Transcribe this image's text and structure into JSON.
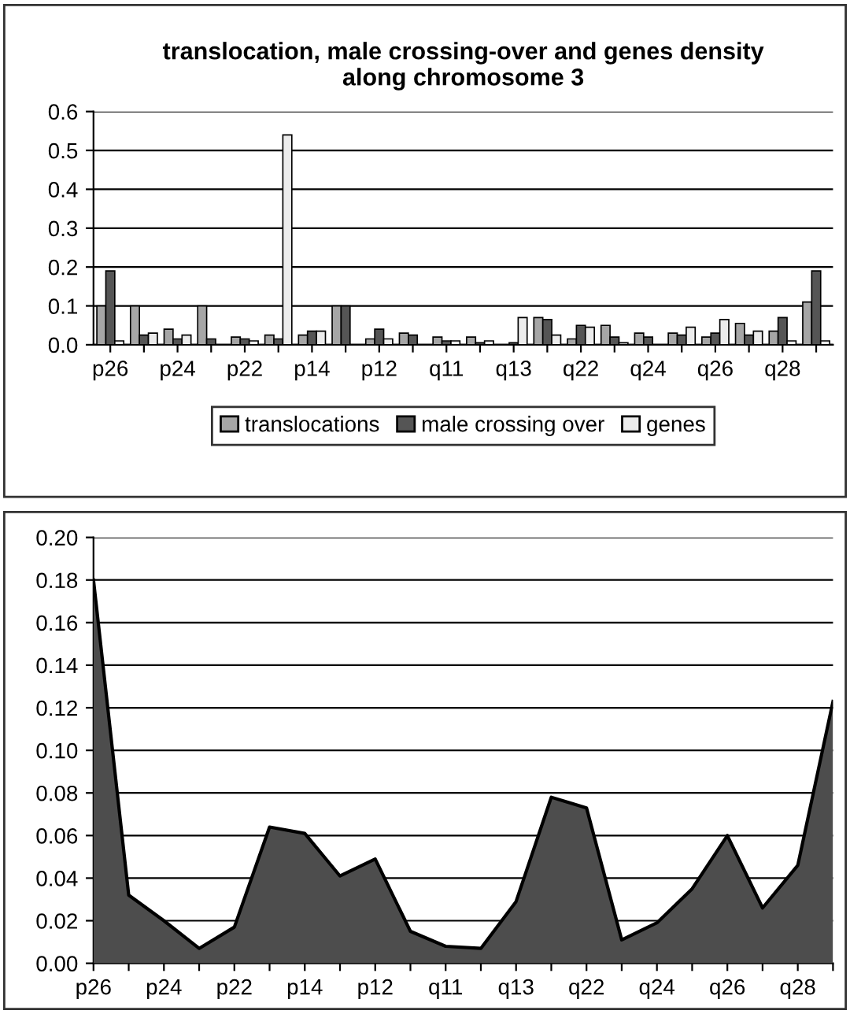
{
  "chart_data": [
    {
      "type": "bar",
      "title": "translocation, male crossing-over and genes density\nalong chromosome 3",
      "categories": [
        "p26",
        null,
        "p24",
        null,
        "p22",
        null,
        "p14",
        null,
        "p12",
        null,
        "q11",
        null,
        "q13",
        null,
        "q22",
        null,
        "q24",
        null,
        "q26",
        null,
        "q28",
        null
      ],
      "series": [
        {
          "name": "translocations",
          "color": "#a6a6a6",
          "values": [
            0.1,
            0.1,
            0.04,
            0.1,
            0.02,
            0.025,
            0.025,
            0.1,
            0.015,
            0.03,
            0.02,
            0.02,
            null,
            0.07,
            0.015,
            0.05,
            0.03,
            0.03,
            0.02,
            0.055,
            0.035,
            0.11
          ]
        },
        {
          "name": "male crossing over",
          "color": "#555555",
          "values": [
            0.19,
            0.025,
            0.015,
            0.015,
            0.015,
            0.015,
            0.035,
            0.1,
            0.04,
            0.025,
            0.01,
            0.005,
            0.005,
            0.065,
            0.05,
            0.02,
            0.02,
            0.025,
            0.03,
            0.025,
            0.07,
            0.19
          ]
        },
        {
          "name": "genes",
          "color": "#ececec",
          "values": [
            0.01,
            0.03,
            0.025,
            null,
            0.01,
            0.54,
            0.035,
            null,
            0.015,
            null,
            0.01,
            0.01,
            0.07,
            0.025,
            0.045,
            0.005,
            null,
            0.045,
            0.065,
            0.035,
            0.01,
            0.01
          ]
        }
      ],
      "ylim": [
        0,
        0.6
      ],
      "yticks": [
        {
          "value": 0,
          "label": "0.0"
        },
        {
          "value": 0.1,
          "label": "0.1"
        },
        {
          "value": 0.2,
          "label": "0.2"
        },
        {
          "value": 0.3,
          "label": "0.3"
        },
        {
          "value": 0.4,
          "label": "0.4"
        },
        {
          "value": 0.5,
          "label": "0.5"
        },
        {
          "value": 0.6,
          "label": "0.6"
        }
      ],
      "grid": "y",
      "legend": "bottom"
    },
    {
      "type": "area",
      "categories": [
        "p26",
        null,
        "p24",
        null,
        "p22",
        null,
        "p14",
        null,
        "p12",
        null,
        "q11",
        null,
        "q13",
        null,
        "q22",
        null,
        "q24",
        null,
        "q26",
        null,
        "q28",
        null
      ],
      "series": [
        {
          "color": "#4d4d4d",
          "values": [
            0.18,
            0.032,
            0.02,
            0.007,
            0.017,
            0.064,
            0.061,
            0.041,
            0.049,
            0.015,
            0.008,
            0.007,
            0.029,
            0.078,
            0.073,
            0.011,
            0.019,
            0.035,
            0.06,
            0.026,
            0.046,
            0.123
          ]
        }
      ],
      "ylim": [
        0,
        0.2
      ],
      "yticks": [
        {
          "value": 0,
          "label": "0.00"
        },
        {
          "value": 0.02,
          "label": "0.02"
        },
        {
          "value": 0.04,
          "label": "0.04"
        },
        {
          "value": 0.06,
          "label": "0.06"
        },
        {
          "value": 0.08,
          "label": "0.08"
        },
        {
          "value": 0.1,
          "label": "0.10"
        },
        {
          "value": 0.12,
          "label": "0.12"
        },
        {
          "value": 0.14,
          "label": "0.14"
        },
        {
          "value": 0.16,
          "label": "0.16"
        },
        {
          "value": 0.18,
          "label": "0.18"
        },
        {
          "value": 0.2,
          "label": "0.20"
        }
      ],
      "grid": "y"
    }
  ]
}
